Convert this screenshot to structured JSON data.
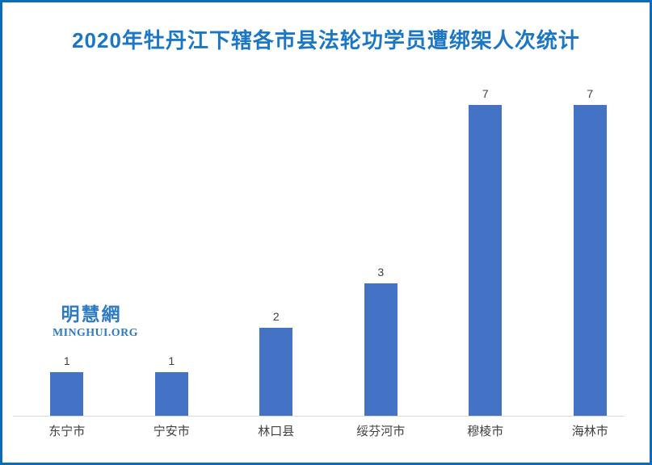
{
  "chart_data": {
    "type": "bar",
    "title": "2020年牡丹江下辖各市县法轮功学员遭绑架人次统计",
    "categories": [
      "东宁市",
      "宁安市",
      "林口县",
      "绥芬河市",
      "穆棱市",
      "海林市"
    ],
    "values": [
      1,
      1,
      2,
      3,
      7,
      7
    ],
    "xlabel": "",
    "ylabel": "",
    "ylim": [
      0,
      7
    ],
    "grid": false,
    "legend": false,
    "data_labels": true,
    "bar_color": "#4472C4",
    "label_color": "#404040",
    "title_color": "#1B76C6",
    "axis_line_color": "#D9D9D9",
    "frame_border_color": "#0C6DB6"
  },
  "watermark": {
    "cn": "明慧網",
    "en": "MINGHUI.ORG",
    "color": "#2E7BC3"
  }
}
